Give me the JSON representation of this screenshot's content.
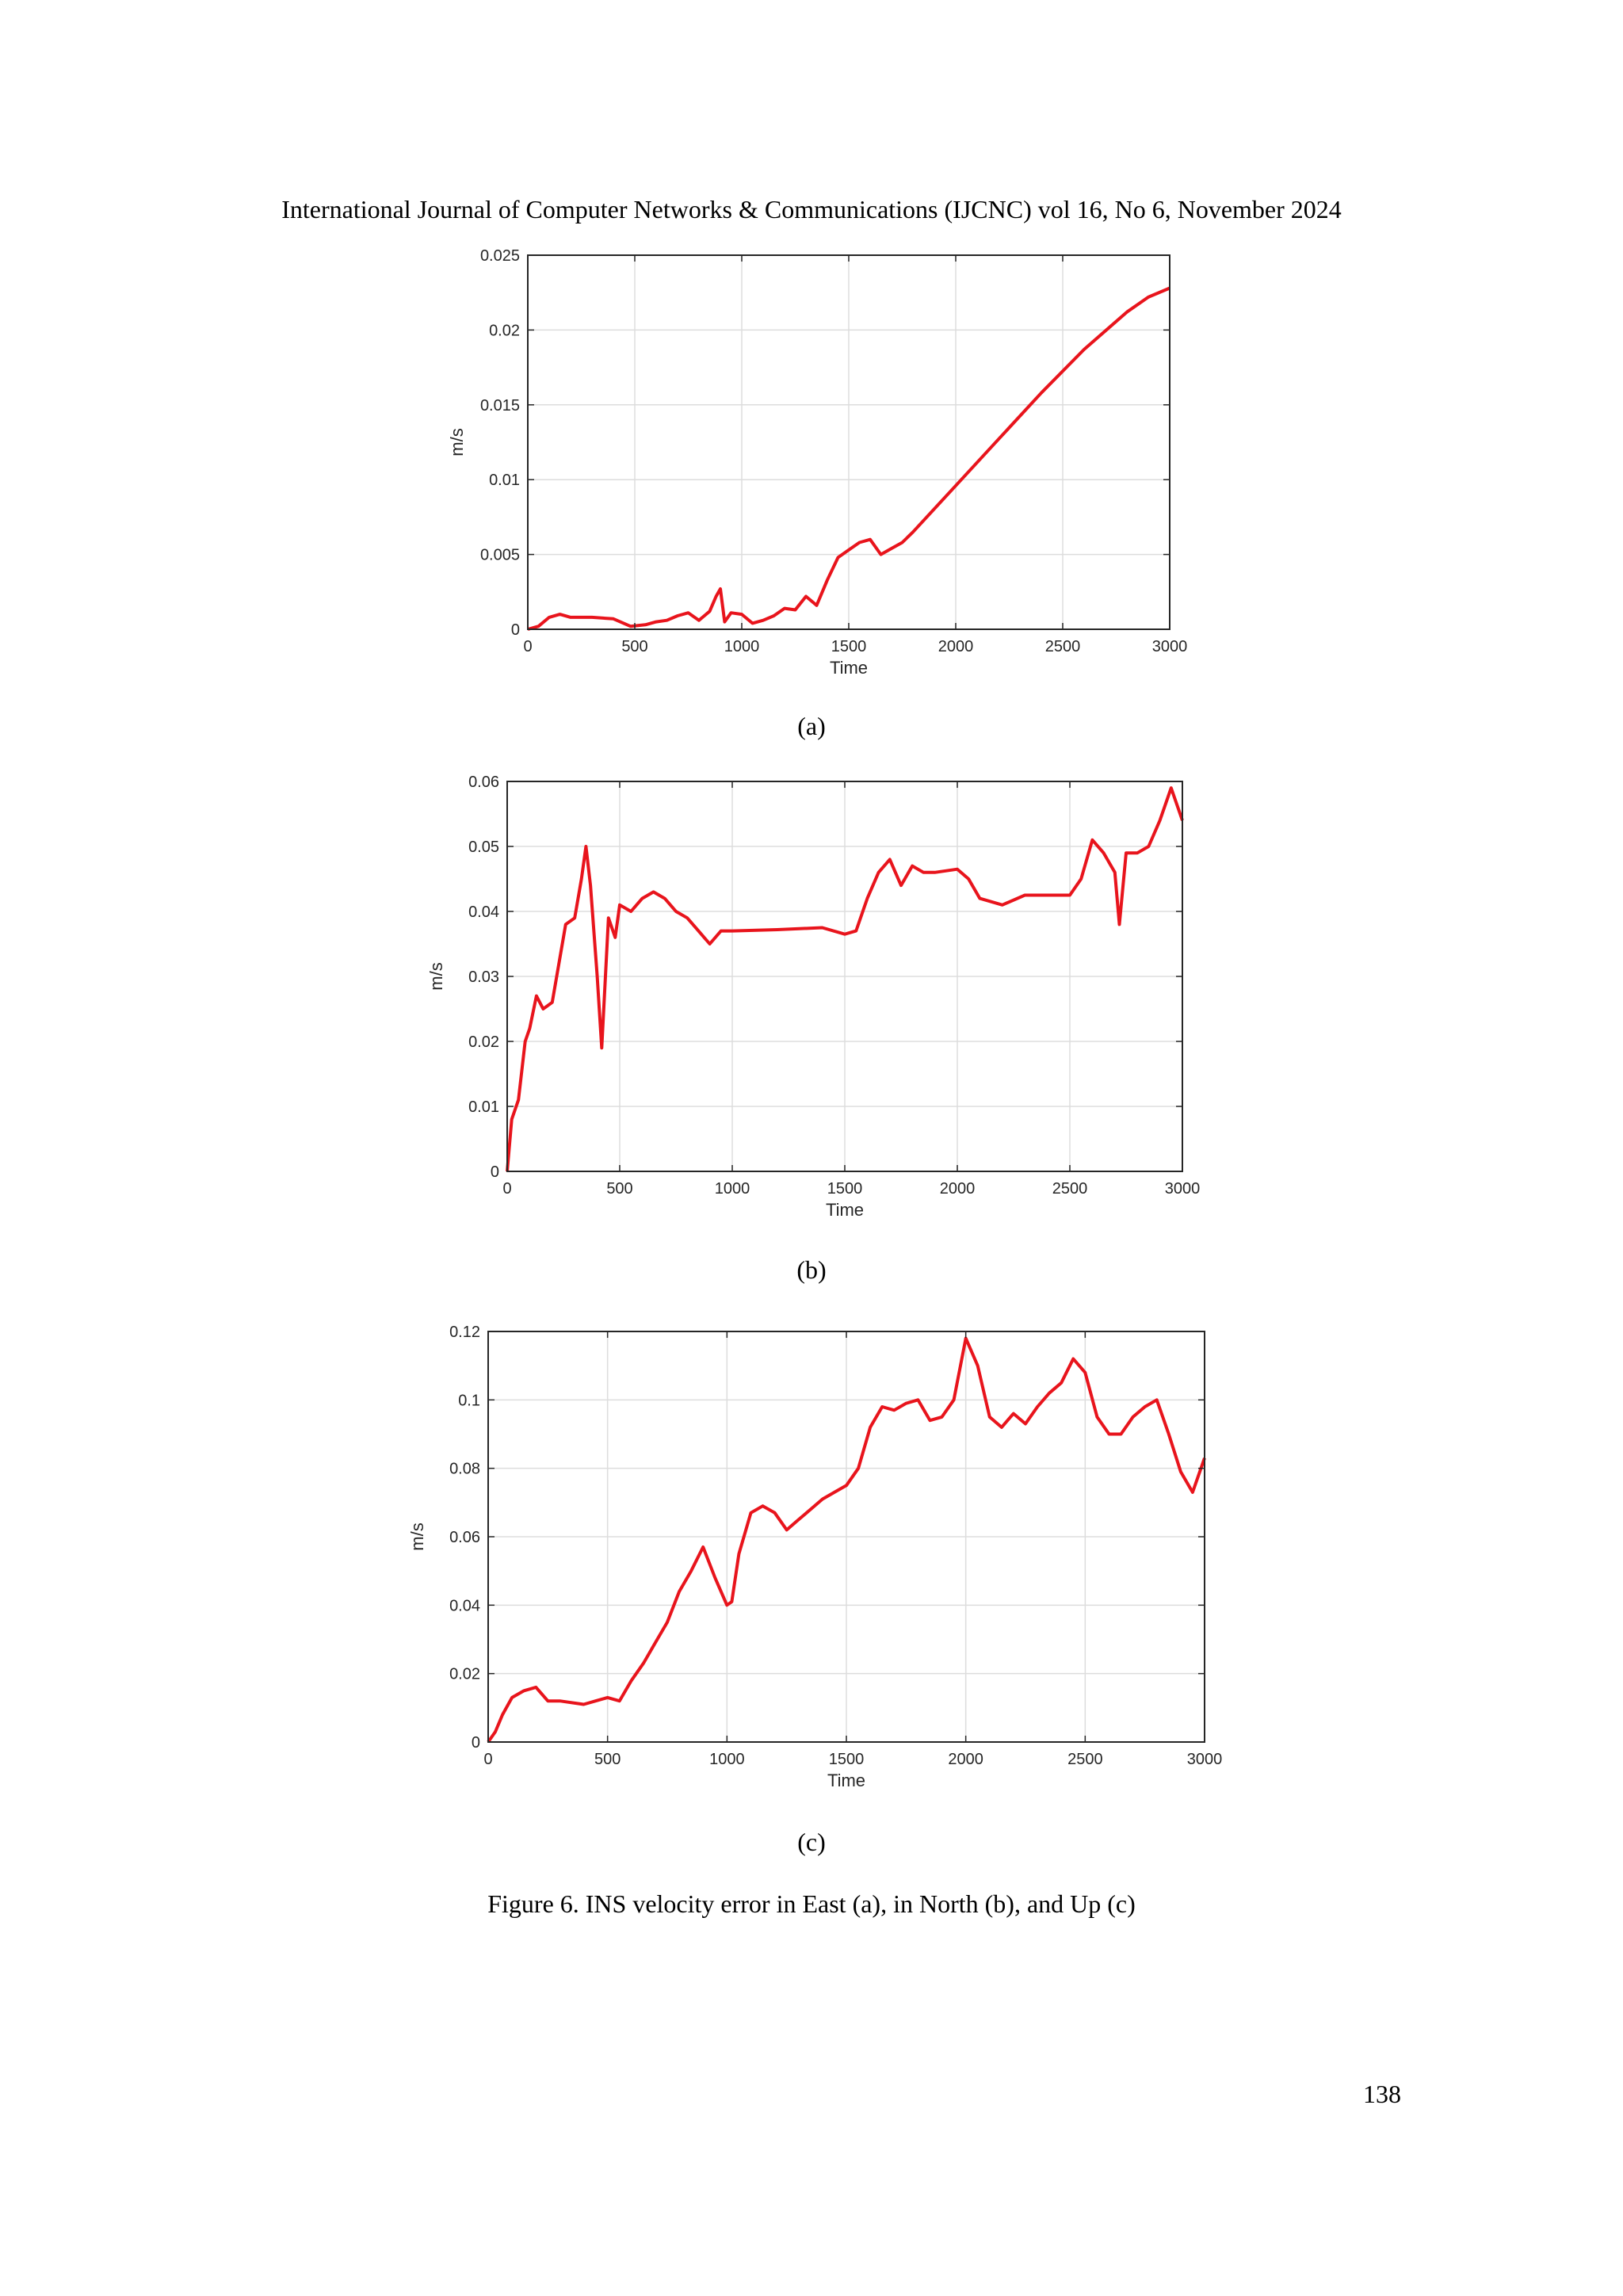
{
  "header": "International Journal of Computer Networks & Communications (IJCNC) vol 16, No 6, November 2024",
  "page_number": "138",
  "figure_caption": "Figure 6.  INS velocity error in East (a), in North (b), and Up (c)",
  "colors": {
    "line": "#e8141c",
    "grid": "#dddddd",
    "axis": "#262626"
  },
  "chart_data": [
    {
      "type": "line",
      "sublabel": "(a)",
      "xlabel": "Time",
      "ylabel": "m/s",
      "xlim": [
        0,
        3000
      ],
      "ylim": [
        0,
        0.025
      ],
      "xticks": [
        0,
        500,
        1000,
        1500,
        2000,
        2500,
        3000
      ],
      "yticks": [
        0,
        0.005,
        0.01,
        0.015,
        0.02,
        0.025
      ],
      "xtick_labels": [
        "0",
        "500",
        "1000",
        "1500",
        "2000",
        "2500",
        "3000"
      ],
      "ytick_labels": [
        "0",
        "0.005",
        "0.01",
        "0.015",
        "0.02",
        "0.025"
      ],
      "grid": true,
      "series": [
        {
          "x": [
            0,
            50,
            100,
            150,
            200,
            300,
            400,
            480,
            550,
            600,
            650,
            700,
            750,
            800,
            850,
            880,
            900,
            920,
            950,
            1000,
            1050,
            1100,
            1150,
            1200,
            1250,
            1300,
            1350,
            1400,
            1450,
            1500,
            1550,
            1600,
            1650,
            1700,
            1750,
            1800,
            2000,
            2200,
            2400,
            2600,
            2800,
            2900,
            3000
          ],
          "y": [
            0,
            0.0002,
            0.0008,
            0.001,
            0.0008,
            0.0008,
            0.0007,
            0.0002,
            0.0003,
            0.0005,
            0.0006,
            0.0009,
            0.0011,
            0.0006,
            0.0012,
            0.0022,
            0.0027,
            0.0005,
            0.0011,
            0.001,
            0.0004,
            0.0006,
            0.0009,
            0.0014,
            0.0013,
            0.0022,
            0.0016,
            0.0033,
            0.0048,
            0.0053,
            0.0058,
            0.006,
            0.005,
            0.0054,
            0.0058,
            0.0065,
            0.0096,
            0.0127,
            0.0158,
            0.0187,
            0.0212,
            0.0222,
            0.0228
          ]
        }
      ]
    },
    {
      "type": "line",
      "sublabel": "(b)",
      "xlabel": "Time",
      "ylabel": "m/s",
      "xlim": [
        0,
        3000
      ],
      "ylim": [
        0,
        0.06
      ],
      "xticks": [
        0,
        500,
        1000,
        1500,
        2000,
        2500,
        3000
      ],
      "yticks": [
        0,
        0.01,
        0.02,
        0.03,
        0.04,
        0.05,
        0.06
      ],
      "xtick_labels": [
        "0",
        "500",
        "1000",
        "1500",
        "2000",
        "2500",
        "3000"
      ],
      "ytick_labels": [
        "0",
        "0.01",
        "0.02",
        "0.03",
        "0.04",
        "0.05",
        "0.06"
      ],
      "grid": true,
      "series": [
        {
          "x": [
            0,
            20,
            50,
            80,
            100,
            130,
            160,
            200,
            230,
            260,
            300,
            330,
            350,
            370,
            400,
            420,
            450,
            480,
            500,
            550,
            600,
            650,
            700,
            750,
            800,
            850,
            900,
            950,
            1000,
            1200,
            1400,
            1500,
            1550,
            1600,
            1650,
            1700,
            1750,
            1800,
            1850,
            1900,
            2000,
            2050,
            2100,
            2200,
            2300,
            2400,
            2500,
            2550,
            2600,
            2650,
            2700,
            2720,
            2750,
            2800,
            2850,
            2900,
            2950,
            3000
          ],
          "y": [
            0,
            0.008,
            0.011,
            0.02,
            0.022,
            0.027,
            0.025,
            0.026,
            0.032,
            0.038,
            0.039,
            0.045,
            0.05,
            0.044,
            0.03,
            0.019,
            0.039,
            0.036,
            0.041,
            0.04,
            0.042,
            0.043,
            0.042,
            0.04,
            0.039,
            0.037,
            0.035,
            0.037,
            0.037,
            0.0372,
            0.0375,
            0.0365,
            0.037,
            0.042,
            0.046,
            0.048,
            0.044,
            0.047,
            0.046,
            0.046,
            0.0465,
            0.045,
            0.042,
            0.041,
            0.0425,
            0.0425,
            0.0425,
            0.045,
            0.051,
            0.049,
            0.046,
            0.038,
            0.049,
            0.049,
            0.05,
            0.054,
            0.059,
            0.054
          ]
        }
      ]
    },
    {
      "type": "line",
      "sublabel": "(c)",
      "xlabel": "Time",
      "ylabel": "m/s",
      "xlim": [
        0,
        3000
      ],
      "ylim": [
        0,
        0.12
      ],
      "xticks": [
        0,
        500,
        1000,
        1500,
        2000,
        2500,
        3000
      ],
      "yticks": [
        0,
        0.02,
        0.04,
        0.06,
        0.08,
        0.1,
        0.12
      ],
      "xtick_labels": [
        "0",
        "500",
        "1000",
        "1500",
        "2000",
        "2500",
        "3000"
      ],
      "ytick_labels": [
        "0",
        "0.02",
        "0.04",
        "0.06",
        "0.08",
        "0.1",
        "0.12"
      ],
      "grid": true,
      "series": [
        {
          "x": [
            0,
            30,
            60,
            100,
            150,
            200,
            250,
            300,
            400,
            450,
            500,
            550,
            600,
            650,
            700,
            750,
            800,
            850,
            900,
            950,
            1000,
            1020,
            1050,
            1100,
            1150,
            1200,
            1250,
            1300,
            1350,
            1400,
            1450,
            1500,
            1550,
            1600,
            1650,
            1700,
            1750,
            1800,
            1850,
            1900,
            1950,
            2000,
            2050,
            2100,
            2150,
            2200,
            2250,
            2300,
            2350,
            2400,
            2450,
            2500,
            2550,
            2600,
            2650,
            2700,
            2750,
            2800,
            2850,
            2900,
            2950,
            3000
          ],
          "y": [
            0,
            0.003,
            0.008,
            0.013,
            0.015,
            0.016,
            0.012,
            0.012,
            0.011,
            0.012,
            0.013,
            0.012,
            0.018,
            0.023,
            0.029,
            0.035,
            0.044,
            0.05,
            0.057,
            0.048,
            0.04,
            0.041,
            0.055,
            0.067,
            0.069,
            0.067,
            0.062,
            0.065,
            0.068,
            0.071,
            0.073,
            0.075,
            0.08,
            0.092,
            0.098,
            0.097,
            0.099,
            0.1,
            0.094,
            0.095,
            0.1,
            0.118,
            0.11,
            0.095,
            0.092,
            0.096,
            0.093,
            0.098,
            0.102,
            0.105,
            0.112,
            0.108,
            0.095,
            0.09,
            0.09,
            0.095,
            0.098,
            0.1,
            0.09,
            0.079,
            0.073,
            0.083
          ]
        }
      ]
    }
  ]
}
